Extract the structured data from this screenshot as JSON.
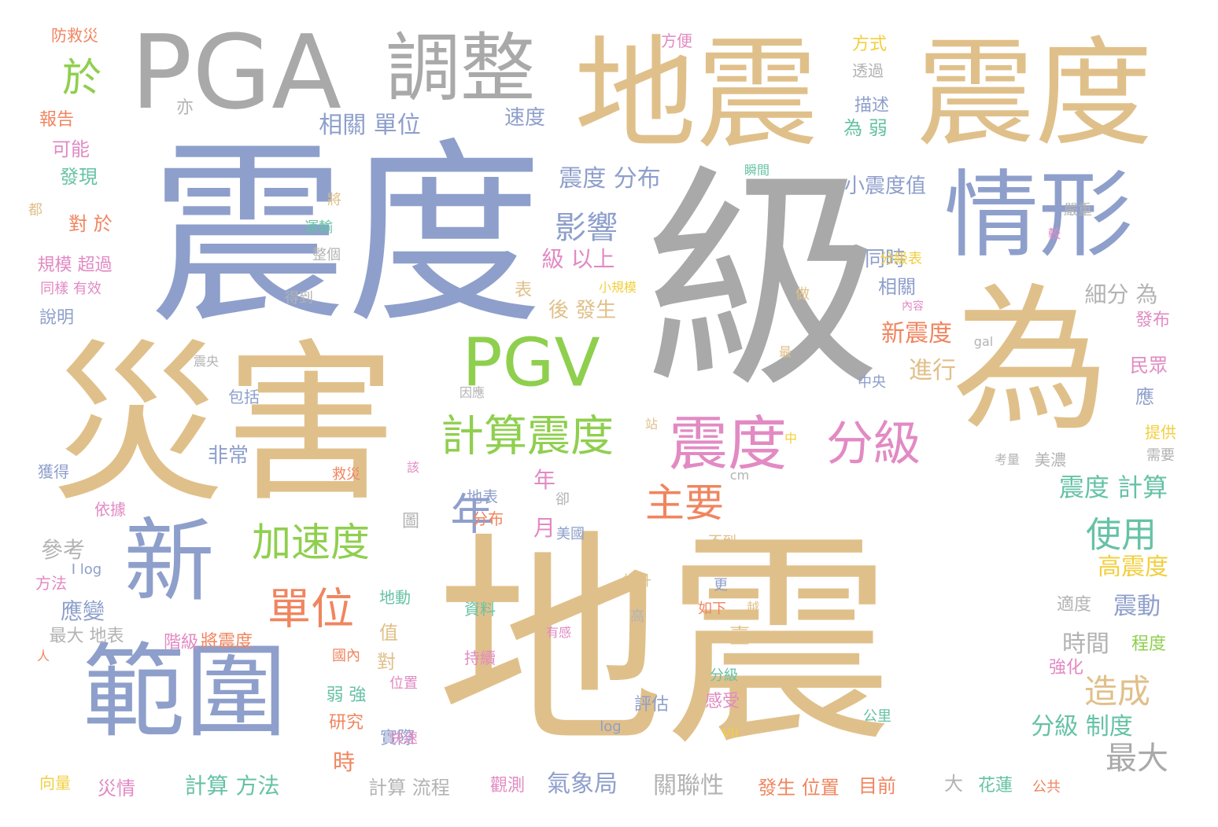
{
  "palette": {
    "tan": "#e0c08a",
    "blue": "#8e9fcb",
    "gray": "#a9a9a9",
    "green": "#8fcf4e",
    "teal": "#66c2a5",
    "orange": "#f0855f",
    "pink": "#e28ac3",
    "yellow": "#f2cf3f",
    "lightgray": "#b3b3b3"
  },
  "words": [
    {
      "text": "地震",
      "color": "tan"
    },
    {
      "text": "震度",
      "color": "blue"
    },
    {
      "text": "級",
      "color": "gray"
    },
    {
      "text": "災害",
      "color": "tan"
    },
    {
      "text": "地震",
      "color": "tan"
    },
    {
      "text": "震度",
      "color": "tan"
    },
    {
      "text": "PGA",
      "color": "gray"
    },
    {
      "text": "範圍",
      "color": "blue"
    },
    {
      "text": "為",
      "color": "tan"
    },
    {
      "text": "情形",
      "color": "blue"
    },
    {
      "text": "新",
      "color": "blue"
    },
    {
      "text": "PGV",
      "color": "green"
    },
    {
      "text": "調整",
      "color": "gray"
    },
    {
      "text": "震度",
      "color": "pink"
    },
    {
      "text": "計算震度",
      "color": "green"
    },
    {
      "text": "分級",
      "color": "pink"
    },
    {
      "text": "加速度",
      "color": "green"
    },
    {
      "text": "單位",
      "color": "orange"
    },
    {
      "text": "年",
      "color": "blue"
    },
    {
      "text": "主要",
      "color": "orange"
    },
    {
      "text": "影響",
      "color": "blue"
    },
    {
      "text": "使用",
      "color": "teal"
    },
    {
      "text": "造成",
      "color": "tan"
    },
    {
      "text": "於",
      "color": "green"
    },
    {
      "text": "最大",
      "color": "gray"
    },
    {
      "text": "震度 計算",
      "color": "teal"
    },
    {
      "text": "年 月",
      "color": "pink"
    },
    {
      "text": "震度 分布",
      "color": "blue"
    },
    {
      "text": "相關 單位",
      "color": "blue"
    },
    {
      "text": "級 以上",
      "color": "pink"
    },
    {
      "text": "新震度",
      "color": "orange"
    },
    {
      "text": "進行",
      "color": "tan"
    },
    {
      "text": "高震度",
      "color": "yellow"
    },
    {
      "text": "震動",
      "color": "blue"
    },
    {
      "text": "應變",
      "color": "blue"
    },
    {
      "text": "參考",
      "color": "lightgray"
    },
    {
      "text": "分級 制度",
      "color": "teal"
    },
    {
      "text": "氣象局",
      "color": "blue"
    },
    {
      "text": "關聯性",
      "color": "lightgray"
    },
    {
      "text": "時間",
      "color": "lightgray"
    },
    {
      "text": "細分 為",
      "color": "lightgray"
    },
    {
      "text": "速度",
      "color": "blue"
    },
    {
      "text": "同時",
      "color": "blue"
    },
    {
      "text": "相關",
      "color": "blue"
    },
    {
      "text": "小震度值",
      "color": "blue"
    },
    {
      "text": "計算 方法",
      "color": "teal"
    },
    {
      "text": "非常",
      "color": "blue"
    },
    {
      "text": "時",
      "color": "orange"
    },
    {
      "text": "後 發生",
      "color": "tan"
    },
    {
      "text": "防救災",
      "color": "orange"
    },
    {
      "text": "報告",
      "color": "orange"
    },
    {
      "text": "可能",
      "color": "pink"
    },
    {
      "text": "發現",
      "color": "teal"
    },
    {
      "text": "對 於",
      "color": "orange"
    },
    {
      "text": "規模 超過",
      "color": "pink"
    },
    {
      "text": "同樣 有效",
      "color": "pink"
    },
    {
      "text": "說明",
      "color": "blue"
    },
    {
      "text": "亦",
      "color": "lightgray"
    },
    {
      "text": "方便",
      "color": "pink"
    },
    {
      "text": "方式",
      "color": "yellow"
    },
    {
      "text": "透過",
      "color": "lightgray"
    },
    {
      "text": "描述",
      "color": "blue"
    },
    {
      "text": "為 弱",
      "color": "teal"
    },
    {
      "text": "分級表",
      "color": "yellow"
    },
    {
      "text": "發布",
      "color": "pink"
    },
    {
      "text": "民眾",
      "color": "pink"
    },
    {
      "text": "應",
      "color": "blue"
    },
    {
      "text": "提供",
      "color": "yellow"
    },
    {
      "text": "需要",
      "color": "lightgray"
    },
    {
      "text": "美濃",
      "color": "lightgray"
    },
    {
      "text": "適度",
      "color": "lightgray"
    },
    {
      "text": "程度",
      "color": "green"
    },
    {
      "text": "強化",
      "color": "pink"
    },
    {
      "text": "公里",
      "color": "teal"
    },
    {
      "text": "花蓮",
      "color": "teal"
    },
    {
      "text": "公共",
      "color": "orange"
    },
    {
      "text": "目前",
      "color": "orange"
    },
    {
      "text": "發生 位置",
      "color": "orange"
    },
    {
      "text": "計算 流程",
      "color": "lightgray"
    },
    {
      "text": "觀測",
      "color": "pink"
    },
    {
      "text": "災情",
      "color": "pink"
    },
    {
      "text": "向量",
      "color": "yellow"
    },
    {
      "text": "最大 地表",
      "color": "lightgray"
    },
    {
      "text": "方法",
      "color": "pink"
    },
    {
      "text": "階級",
      "color": "pink"
    },
    {
      "text": "將震度",
      "color": "orange"
    },
    {
      "text": "研究",
      "color": "orange"
    },
    {
      "text": "實際",
      "color": "blue"
    },
    {
      "text": "弱 強",
      "color": "teal"
    },
    {
      "text": "評估",
      "color": "blue"
    },
    {
      "text": "感受",
      "color": "pink"
    },
    {
      "text": "分級",
      "color": "teal"
    },
    {
      "text": "獲得",
      "color": "blue"
    },
    {
      "text": "依據",
      "color": "pink"
    },
    {
      "text": "救災",
      "color": "orange"
    },
    {
      "text": "地表",
      "color": "blue"
    },
    {
      "text": "分布",
      "color": "orange"
    },
    {
      "text": "美國",
      "color": "blue"
    },
    {
      "text": "不到",
      "color": "tan"
    },
    {
      "text": "提升",
      "color": "tan"
    },
    {
      "text": "地動",
      "color": "teal"
    },
    {
      "text": "資料",
      "color": "teal"
    },
    {
      "text": "持續",
      "color": "pink"
    },
    {
      "text": "位置",
      "color": "pink"
    },
    {
      "text": "快速",
      "color": "pink"
    },
    {
      "text": "國內",
      "color": "orange"
    },
    {
      "text": "值",
      "color": "tan"
    },
    {
      "text": "對",
      "color": "tan"
    },
    {
      "text": "大",
      "color": "lightgray"
    },
    {
      "text": "圖",
      "color": "lightgray"
    },
    {
      "text": "臺",
      "color": "tan"
    },
    {
      "text": "表",
      "color": "tan"
    },
    {
      "text": "包括",
      "color": "blue"
    },
    {
      "text": "運輸",
      "color": "teal"
    },
    {
      "text": "整個",
      "color": "lightgray"
    },
    {
      "text": "得到",
      "color": "lightgray"
    },
    {
      "text": "做",
      "color": "tan"
    },
    {
      "text": "嚴重",
      "color": "lightgray"
    },
    {
      "text": "中央",
      "color": "blue"
    },
    {
      "text": "gal",
      "color": "lightgray"
    },
    {
      "text": "cm",
      "color": "lightgray"
    },
    {
      "text": "log",
      "color": "blue"
    },
    {
      "text": "VII",
      "color": "yellow"
    },
    {
      "text": "都",
      "color": "tan"
    },
    {
      "text": "將",
      "color": "tan"
    },
    {
      "text": "高",
      "color": "lightgray"
    },
    {
      "text": "更",
      "color": "blue"
    },
    {
      "text": "如下",
      "color": "orange"
    },
    {
      "text": "考量",
      "color": "lightgray"
    },
    {
      "text": "卻",
      "color": "lightgray"
    },
    {
      "text": "中",
      "color": "yellow"
    },
    {
      "text": "小規模",
      "color": "yellow"
    },
    {
      "text": "I log",
      "color": "blue"
    },
    {
      "text": "有感",
      "color": "pink"
    },
    {
      "text": "震央",
      "color": "lightgray"
    },
    {
      "text": "瞬間",
      "color": "teal"
    },
    {
      "text": "站",
      "color": "tan"
    },
    {
      "text": "該",
      "color": "pink"
    },
    {
      "text": "人",
      "color": "orange"
    },
    {
      "text": "因應",
      "color": "lightgray"
    },
    {
      "text": "內容",
      "color": "pink"
    },
    {
      "text": "越",
      "color": "tan"
    },
    {
      "text": "較",
      "color": "pink"
    },
    {
      "text": "最",
      "color": "tan"
    }
  ]
}
